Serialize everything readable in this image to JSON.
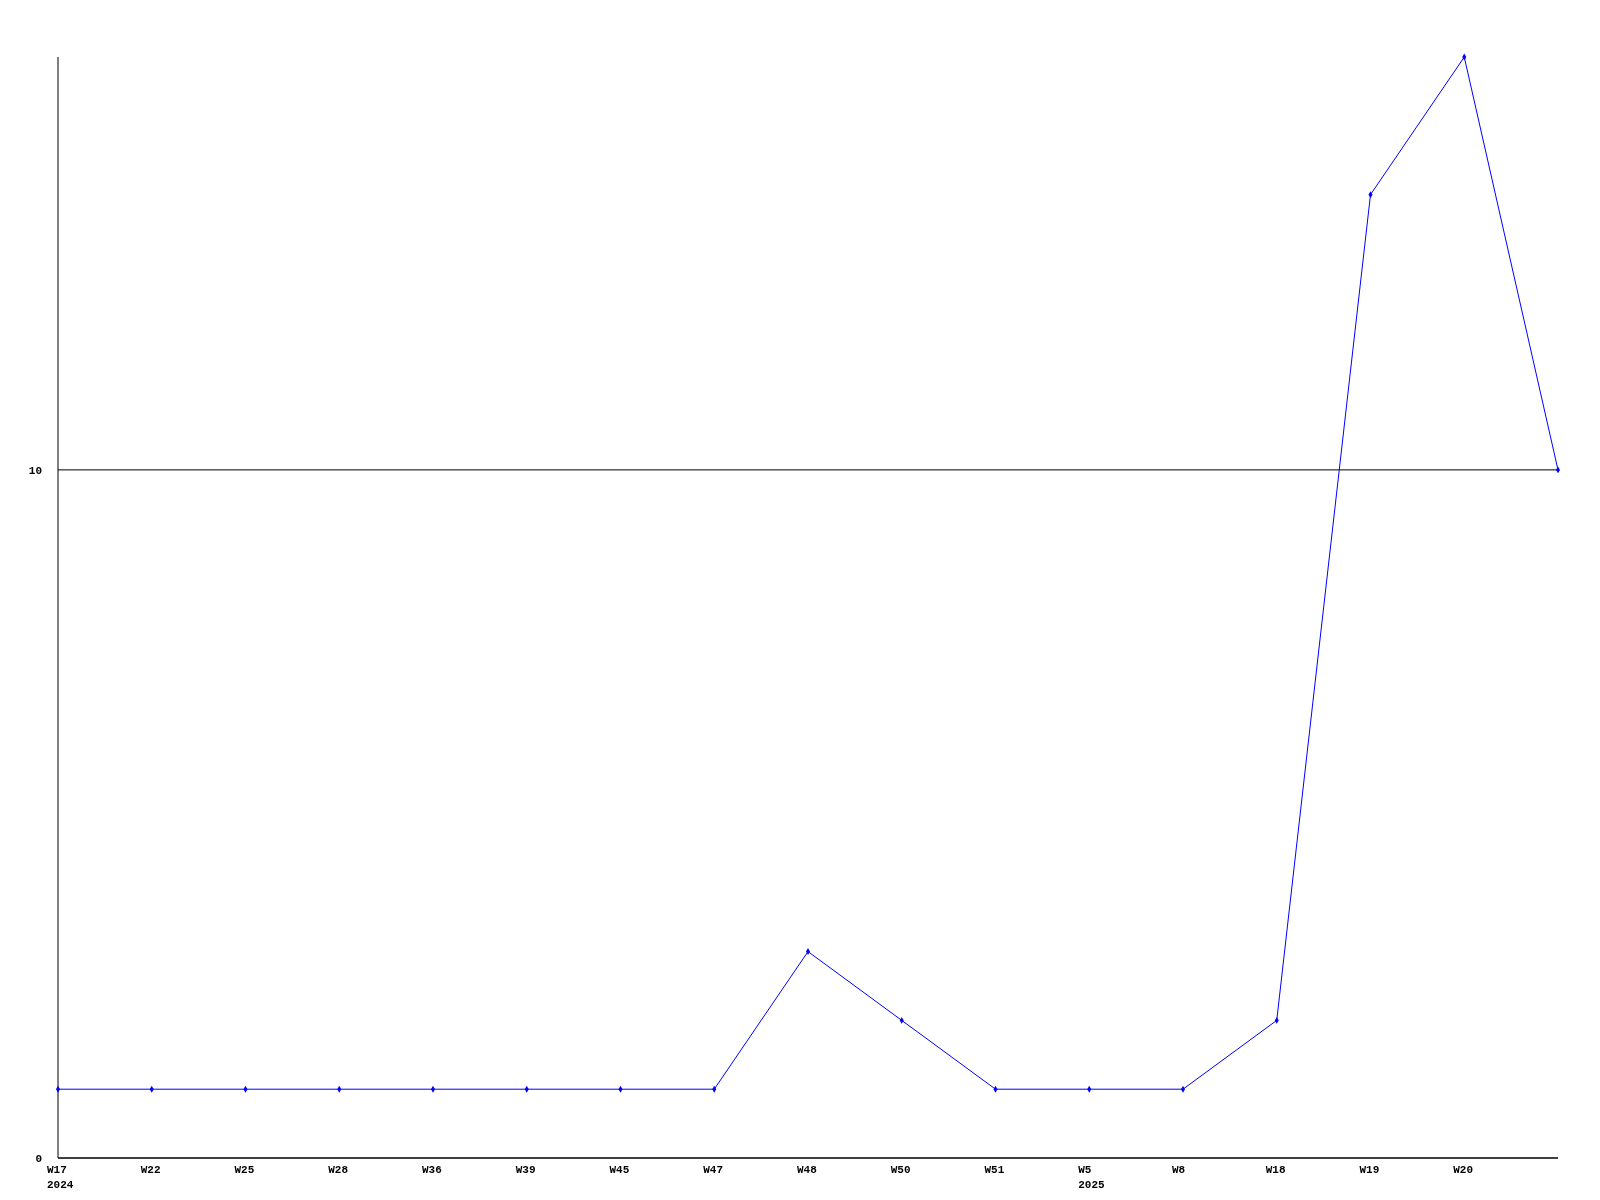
{
  "chart_data": {
    "type": "line",
    "categories": [
      "W17\n2024",
      "W22",
      "W25",
      "W28",
      "W36",
      "W39",
      "W45",
      "W47",
      "W48",
      "W50",
      "W51",
      "W5\n2025",
      "W8",
      "W18",
      "W19",
      "W20",
      null
    ],
    "series": [
      {
        "color": "#0000ff",
        "values": [
          1,
          1,
          1,
          1,
          1,
          1,
          1,
          1,
          3,
          2,
          1,
          1,
          1,
          2,
          14,
          16,
          10
        ]
      }
    ],
    "ylim": [
      0,
      16
    ],
    "yticks": [
      0,
      10
    ],
    "grid": "y",
    "marker": "diamond"
  }
}
